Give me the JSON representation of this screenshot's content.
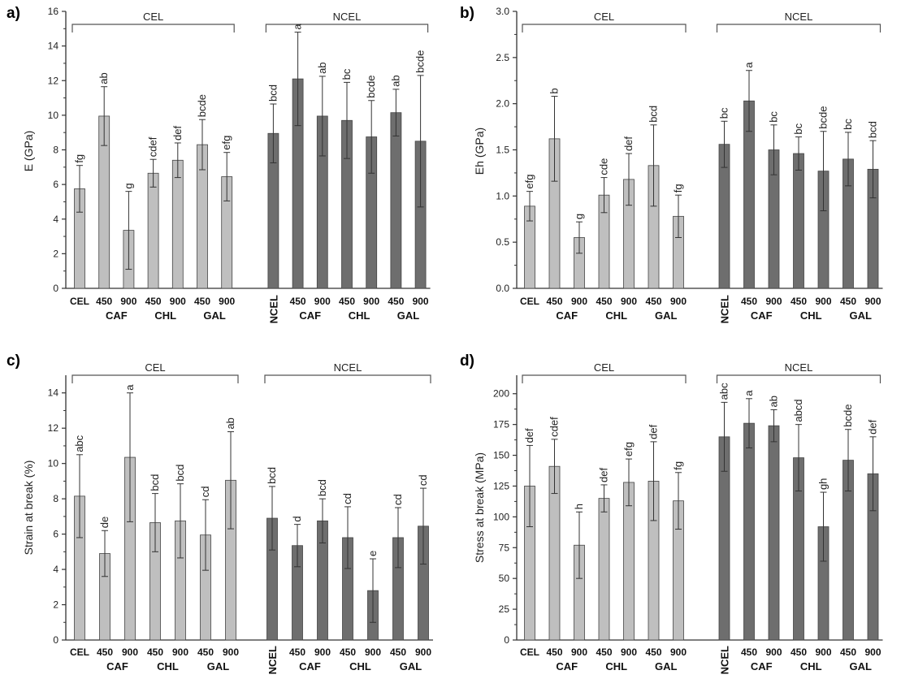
{
  "colors": {
    "cel": "#bfbfbf",
    "ncel": "#6e6e6e",
    "axis": "#333333",
    "bracket": "#555555"
  },
  "chart_data": [
    {
      "panel": "a)",
      "type": "bar",
      "ylabel": "E (GPa)",
      "ylim": [
        0,
        16
      ],
      "yticks": [
        0,
        2,
        4,
        6,
        8,
        10,
        12,
        14,
        16
      ],
      "categories": [
        "CEL",
        "450",
        "900",
        "450",
        "900",
        "450",
        "900",
        "NCEL",
        "450",
        "900",
        "450",
        "900",
        "450",
        "900"
      ],
      "groups": [
        "CAF",
        "CHL",
        "GAL",
        "CAF",
        "CHL",
        "GAL"
      ],
      "brackets": [
        "CEL",
        "NCEL"
      ],
      "values": [
        5.75,
        9.95,
        3.35,
        6.65,
        7.4,
        8.3,
        6.45,
        8.95,
        12.1,
        9.95,
        9.7,
        8.75,
        10.15,
        8.5
      ],
      "errors": [
        1.35,
        1.7,
        2.25,
        0.8,
        1.0,
        1.45,
        1.4,
        1.7,
        2.7,
        2.3,
        2.2,
        2.1,
        1.35,
        3.8
      ],
      "letters": [
        "fg",
        "ab",
        "g",
        "cdef",
        "def",
        "bcde",
        "efg",
        "bcd",
        "a",
        "ab",
        "bc",
        "bcde",
        "ab",
        "bcde"
      ]
    },
    {
      "panel": "b)",
      "type": "bar",
      "ylabel": "Eh (GPa)",
      "ylim": [
        0,
        3.0
      ],
      "yticks": [
        "0.0",
        "0.5",
        "1.0",
        "1.5",
        "2.0",
        "2.5",
        "3.0"
      ],
      "categories": [
        "CEL",
        "450",
        "900",
        "450",
        "900",
        "450",
        "900",
        "NCEL",
        "450",
        "900",
        "450",
        "900",
        "450",
        "900"
      ],
      "groups": [
        "CAF",
        "CHL",
        "GAL",
        "CAF",
        "CHL",
        "GAL"
      ],
      "brackets": [
        "CEL",
        "NCEL"
      ],
      "values": [
        0.89,
        1.62,
        0.55,
        1.01,
        1.18,
        1.33,
        0.78,
        1.56,
        2.03,
        1.5,
        1.46,
        1.27,
        1.4,
        1.29
      ],
      "errors": [
        0.16,
        0.46,
        0.17,
        0.19,
        0.28,
        0.44,
        0.23,
        0.25,
        0.33,
        0.27,
        0.18,
        0.43,
        0.29,
        0.31
      ],
      "letters": [
        "efg",
        "b",
        "g",
        "cde",
        "def",
        "bcd",
        "fg",
        "bc",
        "a",
        "bc",
        "bc",
        "bcde",
        "bc",
        "bcd"
      ]
    },
    {
      "panel": "c)",
      "type": "bar",
      "ylabel": "Strain at break (%)",
      "ylim": [
        0,
        15
      ],
      "yticks": [
        0,
        2,
        4,
        6,
        8,
        10,
        12,
        14
      ],
      "categories": [
        "CEL",
        "450",
        "900",
        "450",
        "900",
        "450",
        "900",
        "NCEL",
        "450",
        "900",
        "450",
        "900",
        "450",
        "900"
      ],
      "groups": [
        "CAF",
        "CHL",
        "GAL",
        "CAF",
        "CHL",
        "GAL"
      ],
      "brackets": [
        "CEL",
        "NCEL"
      ],
      "values": [
        8.15,
        4.9,
        10.35,
        6.65,
        6.75,
        5.95,
        9.05,
        6.9,
        5.35,
        6.75,
        5.8,
        2.8,
        5.8,
        6.45
      ],
      "errors": [
        2.35,
        1.3,
        3.65,
        1.65,
        2.1,
        2.0,
        2.75,
        1.8,
        1.2,
        1.25,
        1.75,
        1.8,
        1.7,
        2.15
      ],
      "letters": [
        "abc",
        "de",
        "a",
        "bcd",
        "bcd",
        "cd",
        "ab",
        "bcd",
        "d",
        "bcd",
        "cd",
        "e",
        "cd",
        "cd"
      ]
    },
    {
      "panel": "d)",
      "type": "bar",
      "ylabel": "Stress at break (MPa)",
      "ylim": [
        0,
        215
      ],
      "yticks": [
        0,
        25,
        50,
        75,
        100,
        125,
        150,
        175,
        200
      ],
      "categories": [
        "CEL",
        "450",
        "900",
        "450",
        "900",
        "450",
        "900",
        "NCEL",
        "450",
        "900",
        "450",
        "900",
        "450",
        "900"
      ],
      "groups": [
        "CAF",
        "CHL",
        "GAL",
        "CAF",
        "CHL",
        "GAL"
      ],
      "brackets": [
        "CEL",
        "NCEL"
      ],
      "values": [
        125,
        141,
        77,
        115,
        128,
        129,
        113,
        165,
        176,
        174,
        148,
        92,
        146,
        135
      ],
      "errors": [
        33,
        22,
        27,
        11,
        19,
        32,
        23,
        28,
        20,
        13,
        27,
        28,
        25,
        30
      ],
      "letters": [
        "def",
        "cdef",
        "h",
        "def",
        "efg",
        "def",
        "fg",
        "abc",
        "a",
        "ab",
        "abcd",
        "gh",
        "bcde",
        "def"
      ]
    }
  ]
}
